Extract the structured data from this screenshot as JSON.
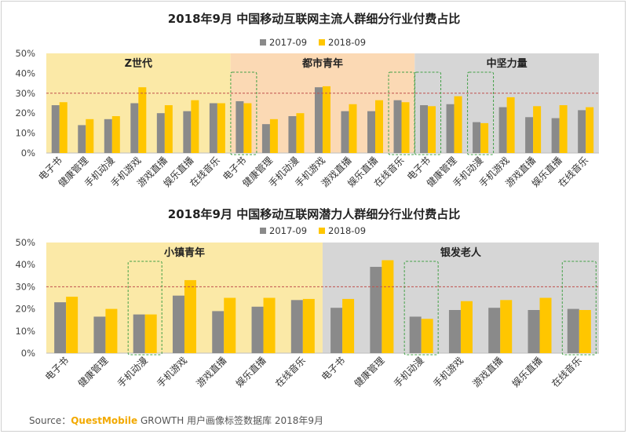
{
  "colors": {
    "s2017": "#8a8a8a",
    "s2018": "#ffc600",
    "band_yellow": "#fbe9a7",
    "band_orange": "#fbd9b4",
    "band_gray": "#d6d6d6",
    "ref_line": "#c0504d",
    "highlight": "#43a047"
  },
  "source": {
    "label": "Source：",
    "brand": "QuestMobile",
    "rest": " GROWTH 用户画像标签数据库 2018年9月"
  },
  "chart_data": [
    {
      "type": "bar",
      "title": "2018年9月 中国移动互联网主流人群细分行业付费占比",
      "series": [
        {
          "name": "2017-09",
          "values": [
            24,
            14,
            17,
            25,
            20,
            21,
            25,
            26,
            14.5,
            18.5,
            33,
            21,
            21,
            26.5,
            24,
            24.5,
            15.5,
            23,
            18,
            17.5,
            21.5
          ]
        },
        {
          "name": "2018-09",
          "values": [
            25.5,
            17,
            18.5,
            33,
            24,
            26.5,
            25,
            25,
            17,
            20,
            33.5,
            24.5,
            26.5,
            25.5,
            23.5,
            28.5,
            15,
            28,
            23.5,
            24,
            23
          ]
        }
      ],
      "categories": [
        "电子书",
        "健康管理",
        "手机动漫",
        "手机游戏",
        "游戏直播",
        "娱乐直播",
        "在线音乐",
        "电子书",
        "健康管理",
        "手机动漫",
        "手机游戏",
        "游戏直播",
        "娱乐直播",
        "在线音乐",
        "电子书",
        "健康管理",
        "手机动漫",
        "手机游戏",
        "游戏直播",
        "娱乐直播",
        "在线音乐"
      ],
      "groups": [
        {
          "label": "Z世代",
          "start": 0,
          "end": 6,
          "band": "yellow"
        },
        {
          "label": "都市青年",
          "start": 7,
          "end": 13,
          "band": "orange"
        },
        {
          "label": "中坚力量",
          "start": 14,
          "end": 20,
          "band": "gray"
        }
      ],
      "highlighted": [
        7,
        13,
        14,
        16
      ],
      "reference_line": 30,
      "ylim": [
        0,
        50
      ],
      "yticks": [
        "0%",
        "10%",
        "20%",
        "30%",
        "40%",
        "50%"
      ],
      "legend_position": "top-center"
    },
    {
      "type": "bar",
      "title": "2018年9月 中国移动互联网潜力人群细分行业付费占比",
      "series": [
        {
          "name": "2017-09",
          "values": [
            23,
            16.5,
            17.5,
            26,
            19,
            21,
            24,
            20.5,
            39,
            16.5,
            19.5,
            20.5,
            19.5,
            20
          ]
        },
        {
          "name": "2018-09",
          "values": [
            25.5,
            20,
            17.5,
            33,
            25,
            25,
            24.5,
            24.5,
            42,
            15.5,
            23.5,
            24,
            25,
            19.5
          ]
        }
      ],
      "categories": [
        "电子书",
        "健康管理",
        "手机动漫",
        "手机游戏",
        "游戏直播",
        "娱乐直播",
        "在线音乐",
        "电子书",
        "健康管理",
        "手机动漫",
        "手机游戏",
        "游戏直播",
        "娱乐直播",
        "在线音乐"
      ],
      "groups": [
        {
          "label": "小镇青年",
          "start": 0,
          "end": 6,
          "band": "yellow"
        },
        {
          "label": "银发老人",
          "start": 7,
          "end": 13,
          "band": "gray"
        }
      ],
      "highlighted": [
        2,
        9,
        13
      ],
      "reference_line": 30,
      "ylim": [
        0,
        50
      ],
      "yticks": [
        "0%",
        "10%",
        "20%",
        "30%",
        "40%",
        "50%"
      ],
      "legend_position": "top-center"
    }
  ]
}
